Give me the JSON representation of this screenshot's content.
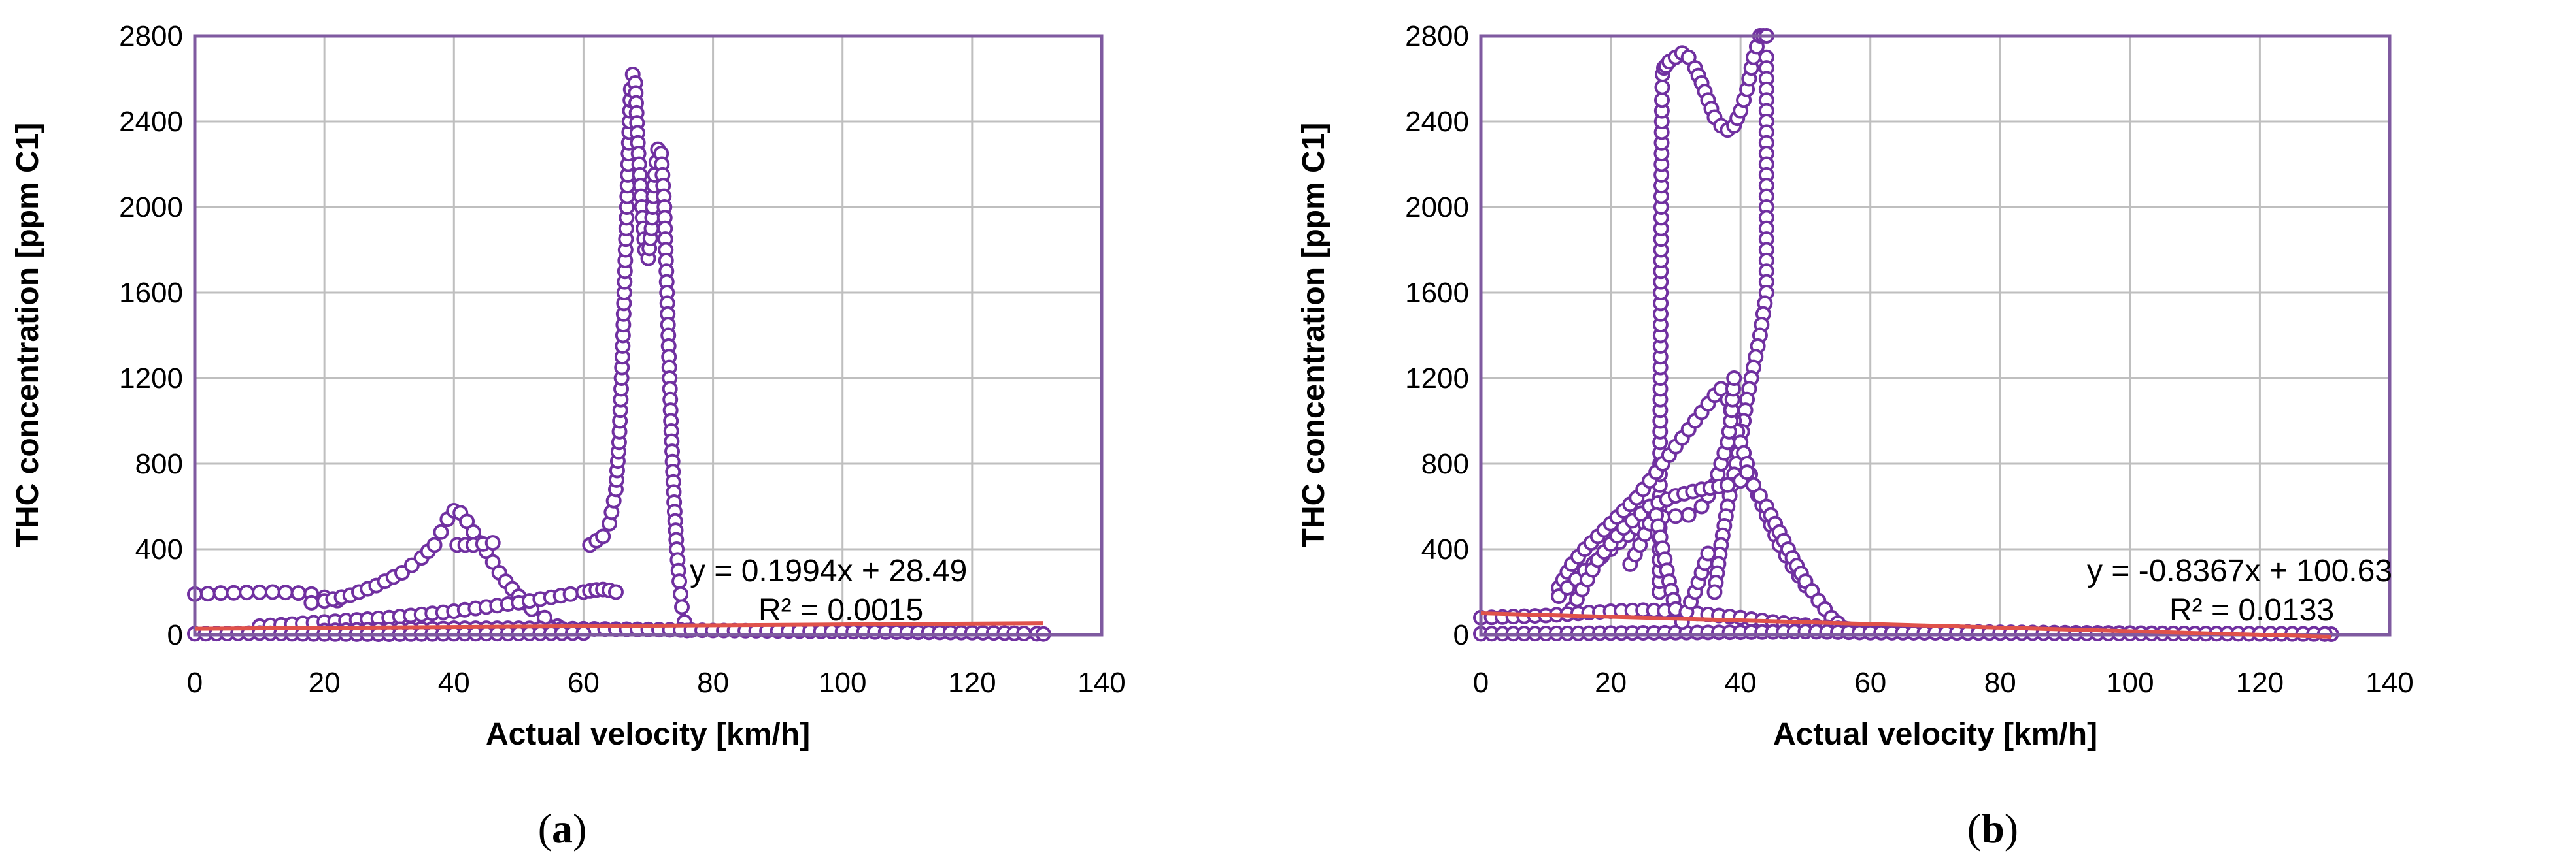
{
  "chart_data": [
    {
      "type": "scatter",
      "caption": "(a)",
      "caption_letter": "a",
      "xlabel": "Actual velocity [km/h]",
      "ylabel": "THC concentration [ppm C1]",
      "xlim": [
        0,
        140
      ],
      "ylim": [
        0,
        2800
      ],
      "xticks": [
        0,
        20,
        40,
        60,
        80,
        100,
        120,
        140
      ],
      "yticks": [
        0,
        400,
        800,
        1200,
        1600,
        2000,
        2400,
        2800
      ],
      "grid": true,
      "marker_color": "#7030A0",
      "trend_color": "#E0524A",
      "equation": "y = 0.1994x + 28.49",
      "r_squared": "R² = 0.0015",
      "trendline": {
        "slope": 0.1994,
        "intercept": 28.49,
        "x_range": [
          0,
          131
        ]
      },
      "series": [
        {
          "x": [
            0,
            2,
            4,
            6,
            8,
            10,
            12,
            14,
            16,
            18,
            20,
            22
          ],
          "y": [
            190,
            192,
            195,
            196,
            198,
            199,
            200,
            198,
            195,
            190,
            175,
            160
          ]
        },
        {
          "x": [
            18,
            20,
            24,
            28,
            32,
            35,
            37,
            38,
            39,
            40,
            41,
            42,
            43,
            44,
            45,
            46,
            47,
            48,
            50,
            52,
            54,
            56
          ],
          "y": [
            150,
            158,
            185,
            230,
            290,
            360,
            420,
            480,
            540,
            580,
            570,
            530,
            480,
            430,
            390,
            340,
            290,
            250,
            180,
            120,
            80,
            40
          ]
        },
        {
          "x": [
            10,
            20,
            30,
            40,
            45,
            50,
            55,
            58,
            60,
            61,
            62,
            63,
            64,
            65
          ],
          "y": [
            40,
            60,
            80,
            110,
            130,
            150,
            175,
            190,
            200,
            205,
            210,
            212,
            208,
            200
          ]
        },
        {
          "x": [
            61,
            62,
            63,
            64,
            65,
            65.5,
            66,
            66.5,
            67,
            67.3,
            67.6,
            68,
            68.4,
            69,
            69.5,
            70,
            70.5,
            71,
            71.5,
            72,
            72.5,
            73,
            73.5,
            74,
            74.4,
            74.8,
            75.2,
            75.6,
            76
          ],
          "y": [
            420,
            440,
            460,
            520,
            680,
            900,
            1300,
            1800,
            2300,
            2550,
            2620,
            2580,
            2300,
            2000,
            1800,
            1760,
            1900,
            2150,
            2270,
            2250,
            2000,
            1500,
            1000,
            620,
            400,
            250,
            130,
            60,
            20
          ]
        },
        {
          "x": [
            20,
            30,
            40,
            50,
            60,
            70,
            80,
            90,
            100,
            110,
            120,
            125,
            128,
            130,
            131
          ],
          "y": [
            20,
            25,
            30,
            30,
            28,
            25,
            20,
            18,
            15,
            12,
            10,
            8,
            6,
            5,
            4
          ]
        },
        {
          "x": [
            0,
            5,
            10,
            15,
            20,
            30,
            40,
            50,
            60
          ],
          "y": [
            5,
            6,
            8,
            5,
            4,
            3,
            5,
            6,
            8
          ]
        },
        {
          "x": [
            40.5,
            43,
            46
          ],
          "y": [
            420,
            420,
            430
          ]
        }
      ]
    },
    {
      "type": "scatter",
      "caption": "(b)",
      "caption_letter": "b",
      "xlabel": "Actual velocity [km/h]",
      "ylabel": "THC concentration [ppm C1]",
      "xlim": [
        0,
        140
      ],
      "ylim": [
        0,
        2800
      ],
      "xticks": [
        0,
        20,
        40,
        60,
        80,
        100,
        120,
        140
      ],
      "yticks": [
        0,
        400,
        800,
        1200,
        1600,
        2000,
        2400,
        2800
      ],
      "grid": true,
      "marker_color": "#7030A0",
      "trend_color": "#E0524A",
      "equation": "y = -0.8367x + 100.63",
      "r_squared": "R² = 0.0133",
      "trendline": {
        "slope": -0.8367,
        "intercept": 100.63,
        "x_range": [
          0,
          131
        ]
      },
      "series": [
        {
          "x": [
            27.5,
            27.6,
            27.7,
            27.8,
            27.9,
            28,
            28.2,
            28.5,
            29,
            30,
            31,
            32,
            33,
            34,
            35,
            36,
            37,
            38,
            39,
            40,
            41,
            42,
            43,
            43.5,
            44
          ],
          "y": [
            200,
            800,
            1500,
            2100,
            2500,
            2620,
            2650,
            2660,
            2680,
            2700,
            2720,
            2700,
            2650,
            2580,
            2500,
            2420,
            2380,
            2360,
            2380,
            2450,
            2550,
            2700,
            2800,
            2800,
            2800
          ]
        },
        {
          "x": [
            44,
            44,
            44,
            44,
            44,
            43.5,
            43,
            42,
            41,
            40,
            39,
            38,
            37,
            36
          ],
          "y": [
            2700,
            2400,
            2100,
            1800,
            1600,
            1500,
            1400,
            1250,
            1100,
            900,
            750,
            600,
            420,
            200
          ]
        },
        {
          "x": [
            12,
            14,
            16,
            18,
            20,
            22,
            24,
            26,
            28,
            30,
            32,
            34,
            36,
            37,
            38,
            40,
            42,
            44,
            46,
            48,
            50
          ],
          "y": [
            220,
            330,
            400,
            460,
            520,
            580,
            640,
            720,
            800,
            880,
            960,
            1040,
            1120,
            1150,
            1100,
            900,
            700,
            560,
            420,
            320,
            230
          ]
        },
        {
          "x": [
            12,
            16,
            20,
            24,
            28,
            32,
            34,
            36,
            37,
            38,
            38.5,
            39
          ],
          "y": [
            180,
            300,
            400,
            500,
            550,
            560,
            600,
            700,
            800,
            900,
            1000,
            1200
          ]
        },
        {
          "x": [
            14,
            18,
            22,
            26,
            30,
            34,
            38,
            40,
            41,
            42,
            44,
            46,
            48,
            50,
            52,
            54,
            56
          ],
          "y": [
            120,
            350,
            500,
            600,
            650,
            680,
            700,
            720,
            760,
            700,
            600,
            480,
            360,
            250,
            160,
            80,
            30
          ]
        },
        {
          "x": [
            0,
            5,
            10,
            15,
            20,
            25,
            30,
            35,
            40,
            45,
            50,
            55,
            60,
            70,
            80,
            90,
            100,
            110,
            120,
            130,
            131
          ],
          "y": [
            80,
            85,
            90,
            100,
            110,
            115,
            110,
            95,
            80,
            60,
            45,
            30,
            20,
            15,
            12,
            10,
            8,
            6,
            5,
            4,
            3
          ]
        },
        {
          "x": [
            0,
            10,
            20,
            30,
            40,
            50,
            60,
            80,
            100,
            120,
            130
          ],
          "y": [
            5,
            6,
            8,
            10,
            12,
            15,
            10,
            8,
            6,
            5,
            4
          ]
        },
        {
          "x": [
            23,
            24.5,
            26,
            27,
            29,
            30,
            31,
            33,
            35
          ],
          "y": [
            330,
            420,
            520,
            560,
            250,
            120,
            60,
            200,
            380
          ]
        }
      ]
    }
  ]
}
